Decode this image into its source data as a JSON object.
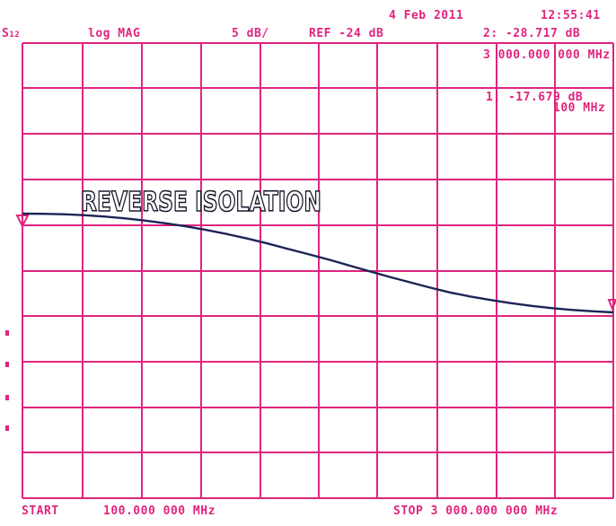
{
  "header": {
    "date": "4 Feb 2011",
    "time": "12:55:41",
    "param_main": "S",
    "param_sub": "12",
    "format": "log MAG",
    "scale": "5 dB/",
    "ref": "REF -24 dB",
    "marker2_value": "2: -28.717 dB",
    "marker2_freq": "3 000.000 000 MHz",
    "marker1_value": "1: -17.679 dB",
    "marker1_freq": "100 MHz"
  },
  "footer": {
    "start_label": "START",
    "start_value": "100.000 000 MHz",
    "stop_label": "STOP 3 000.000 000 MHz"
  },
  "colors": {
    "grid": "#e0247f",
    "trace": "#1c2456",
    "background": "#ffffff"
  },
  "chart_data": {
    "type": "line",
    "title": "REVERSE ISOLATION",
    "xlabel": "",
    "ylabel": "",
    "xlim": [
      100,
      3000
    ],
    "ylim": [
      -74,
      -24
    ],
    "x_unit": "MHz",
    "y_unit": "dB",
    "grid": true,
    "series": [
      {
        "values_x": [
          100,
          200,
          300,
          400,
          500,
          600,
          700,
          800,
          900,
          1000,
          1100,
          1200,
          1300,
          1400,
          1500,
          1600,
          1700,
          1800,
          1900,
          2000,
          2100,
          2200,
          2300,
          2400,
          2500,
          2600,
          2700,
          2800,
          2900,
          3000
        ],
        "values_y": [
          -17.68,
          -17.7,
          -17.75,
          -17.85,
          -18.0,
          -18.2,
          -18.45,
          -18.75,
          -19.1,
          -19.5,
          -19.95,
          -20.45,
          -21.0,
          -21.6,
          -22.2,
          -22.8,
          -23.45,
          -24.1,
          -24.75,
          -25.35,
          -25.95,
          -26.5,
          -26.95,
          -27.35,
          -27.7,
          -28.0,
          -28.25,
          -28.45,
          -28.6,
          -28.72
        ]
      }
    ]
  }
}
